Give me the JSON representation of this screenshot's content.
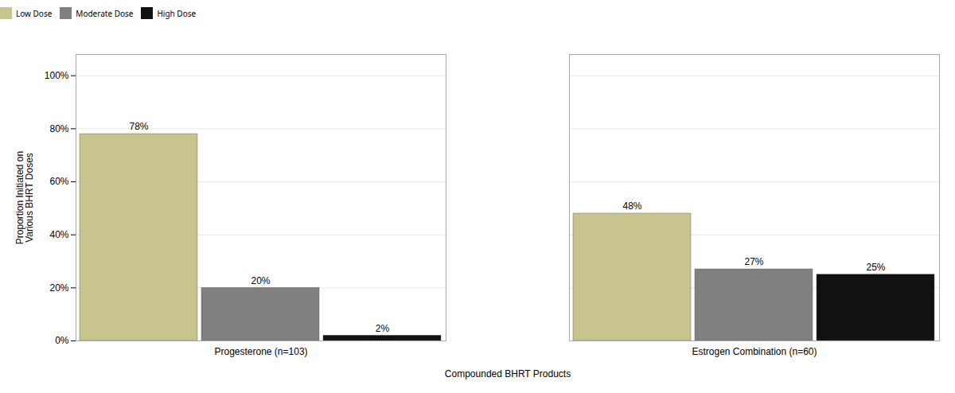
{
  "chart_data": {
    "type": "bar",
    "categories": [
      "Progesterone (n=103)",
      "Estrogen Combination (n=60)"
    ],
    "series": [
      {
        "name": "Low Dose",
        "color": "#c8c48e",
        "values": [
          78,
          48
        ],
        "value_labels": [
          "78%",
          "48%"
        ]
      },
      {
        "name": "Moderate Dose",
        "color": "#808080",
        "values": [
          20,
          27
        ],
        "value_labels": [
          "20%",
          "27%"
        ]
      },
      {
        "name": "High Dose",
        "color": "#111111",
        "values": [
          2,
          25
        ],
        "value_labels": [
          "2%",
          "25%"
        ]
      }
    ],
    "xlabel": "Compounded BHRT Products",
    "ylabel": "Proportion Initiated on\nVarious BHRT Doses",
    "ylim": [
      0,
      108
    ],
    "yticks": [
      {
        "value": 0,
        "label": "0%"
      },
      {
        "value": 20,
        "label": "20%"
      },
      {
        "value": 40,
        "label": "40%"
      },
      {
        "value": 60,
        "label": "60%"
      },
      {
        "value": 80,
        "label": "80%"
      },
      {
        "value": 100,
        "label": "100%"
      }
    ],
    "grid": true,
    "legend": "top",
    "data_labels": true
  }
}
